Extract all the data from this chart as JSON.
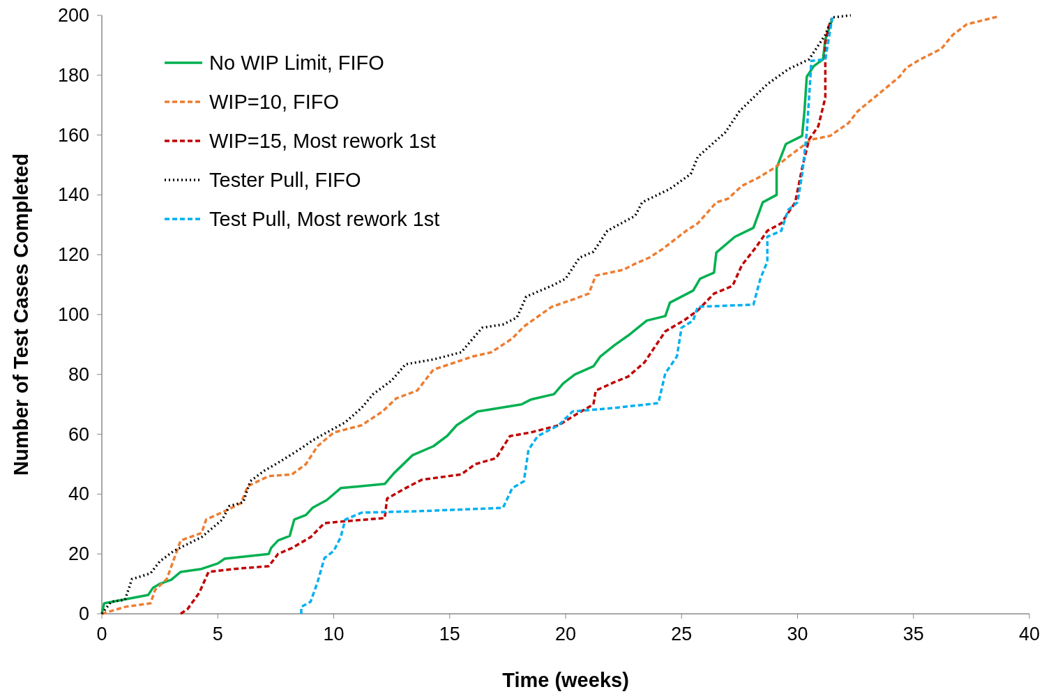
{
  "chart_data": {
    "type": "line",
    "xlabel": "Time (weeks)",
    "ylabel": "Number of Test Cases Completed",
    "xlim": [
      0,
      40
    ],
    "ylim": [
      0,
      200
    ],
    "xticks": [
      0,
      5,
      10,
      15,
      20,
      25,
      30,
      35,
      40
    ],
    "yticks": [
      0,
      20,
      40,
      60,
      80,
      100,
      120,
      140,
      160,
      180,
      200
    ],
    "grid": false,
    "legend": "top left",
    "series": [
      {
        "name": "No WIP Limit, FIFO",
        "color": "#00b050",
        "line_style": "solid",
        "x": [
          0,
          0.1,
          2,
          2.2,
          2.5,
          3,
          3.4,
          4.3,
          5,
          5.3,
          7.2,
          7.3,
          7.6,
          8.1,
          8.3,
          8.8,
          9.1,
          9.7,
          10.3,
          12.2,
          12.6,
          13.4,
          14.3,
          14.9,
          15.3,
          16.2,
          18.1,
          18.5,
          19.5,
          19.9,
          20.4,
          21.2,
          21.5,
          22.1,
          22.7,
          23.5,
          24.3,
          24.5,
          25.5,
          25.8,
          26.4,
          26.5,
          27.3,
          28.1,
          28.5,
          29.1,
          29.1,
          29.5,
          30.2,
          30.3,
          30.4,
          30.7,
          31.1,
          31.2,
          31.5
        ],
        "values": [
          0,
          3.5,
          6.3,
          8.6,
          10,
          11.4,
          14,
          15,
          16.8,
          18.4,
          20,
          22,
          24.5,
          26,
          31.5,
          33,
          35.5,
          38,
          42,
          43.4,
          47,
          53,
          56,
          59.5,
          63,
          67.6,
          70,
          71.6,
          73.4,
          77,
          80,
          82.7,
          86,
          89.7,
          93,
          98,
          99.5,
          104,
          108,
          112,
          114,
          120.7,
          126,
          129,
          137.5,
          140,
          149,
          157,
          159.7,
          168,
          179.5,
          183,
          185.3,
          192,
          198.6
        ]
      },
      {
        "name": "WIP=10,  FIFO",
        "color": "#ed7d31",
        "line_style": "dashed",
        "x": [
          0,
          1,
          2.1,
          2.3,
          2.8,
          3.4,
          4.3,
          4.5,
          5.5,
          6,
          6.3,
          7.2,
          8.2,
          8.8,
          9.3,
          10,
          11.2,
          12.1,
          12.7,
          13.6,
          14.3,
          16,
          16.8,
          17.7,
          18.2,
          19.4,
          20.3,
          21,
          21.3,
          22.5,
          23,
          23.6,
          24.2,
          25.2,
          25.7,
          26.5,
          27,
          27.6,
          28.3,
          29,
          29.6,
          30.6,
          31.4,
          32.2,
          32.6,
          33.7,
          34.4,
          34.7,
          35.3,
          36.2,
          36.7,
          37.3,
          38.6
        ],
        "values": [
          0,
          2.3,
          3.5,
          8,
          11.6,
          24.5,
          27,
          31.5,
          35,
          37,
          42.7,
          46,
          46.6,
          50,
          56,
          60.6,
          63,
          67.6,
          72,
          74.6,
          81.6,
          86,
          87.4,
          92,
          96,
          102.6,
          105,
          107,
          113,
          115,
          117,
          119,
          122,
          128,
          130.5,
          137.5,
          138.7,
          143,
          145.7,
          149,
          152.7,
          158.5,
          159.7,
          164,
          168,
          175,
          179.5,
          182.5,
          185.3,
          188.8,
          193.5,
          197,
          199.5
        ]
      },
      {
        "name": "WIP=15,  Most rework 1st",
        "color": "#c00000",
        "line_style": "dashed",
        "x": [
          3.4,
          3.7,
          4.2,
          4.6,
          5.7,
          7.2,
          7.6,
          8.2,
          9,
          9.6,
          10.3,
          12.2,
          12.3,
          13.1,
          13.8,
          15.5,
          16.1,
          17,
          17.6,
          18.5,
          19.7,
          20.4,
          21.2,
          21.3,
          22.1,
          22.7,
          23.4,
          24.3,
          25.1,
          25.7,
          26.4,
          27.2,
          27.6,
          28.2,
          28.7,
          29.3,
          29.9,
          30.2,
          30.5,
          30.9,
          31.2,
          31.2,
          31.4
        ],
        "values": [
          0,
          1.6,
          7,
          14,
          15,
          15.9,
          20,
          22,
          25.6,
          30.3,
          30.8,
          32,
          38.5,
          42,
          44.8,
          46.6,
          50,
          52,
          59.4,
          60.6,
          63,
          66.4,
          70,
          74.6,
          77.4,
          79.3,
          84,
          94.4,
          98,
          101.4,
          107,
          109.6,
          116.5,
          122.4,
          128,
          130.5,
          137.5,
          149,
          158.5,
          163,
          172.5,
          191,
          198
        ]
      },
      {
        "name": "Tester Pull, FIFO",
        "color": "#000000",
        "line_style": "dotted",
        "x": [
          0,
          0.4,
          1,
          1.3,
          2.1,
          2.5,
          3.1,
          4.3,
          5.2,
          5.5,
          6.1,
          6.4,
          7,
          7.5,
          8.5,
          9.1,
          9.7,
          10.5,
          11.2,
          11.7,
          12.5,
          13.1,
          14.3,
          15.5,
          16.4,
          17.3,
          17.9,
          18.3,
          19.4,
          20,
          20.6,
          21.2,
          21.8,
          23,
          23.3,
          24.5,
          25.4,
          25.7,
          26.9,
          27.5,
          28.1,
          28.7,
          29.6,
          30.5,
          30.8,
          31.2,
          31.5,
          32.3
        ],
        "values": [
          0,
          4,
          4.7,
          11.6,
          13.5,
          17.5,
          21,
          25.6,
          31.5,
          36,
          37.3,
          44.3,
          47.8,
          50,
          54.8,
          58,
          60.6,
          64,
          68.8,
          73.4,
          78,
          83.4,
          85,
          87.4,
          95.6,
          96.7,
          99,
          106,
          109.6,
          112,
          119,
          121,
          128,
          133,
          137.5,
          142,
          147,
          152.7,
          161,
          168,
          172.5,
          177,
          182,
          185.3,
          188.8,
          193.5,
          199.3,
          200
        ]
      },
      {
        "name": "Test Pull, Most rework 1st",
        "color": "#00b0f0",
        "line_style": "dashed",
        "x": [
          8.6,
          8.6,
          9,
          9.3,
          9.6,
          10,
          10.3,
          10.5,
          11.2,
          13.7,
          17.3,
          17.7,
          18.2,
          18.4,
          18.8,
          19.7,
          20.3,
          22.1,
          24,
          24.3,
          24.8,
          25,
          25.5,
          25.7,
          28.1,
          28.4,
          28.7,
          28.7,
          29.3,
          29.6,
          30,
          30.2,
          30.4,
          30.5,
          30.6,
          31.2,
          31.5
        ],
        "values": [
          0,
          2.3,
          4,
          10.5,
          18.6,
          21,
          25.6,
          31.5,
          33.8,
          34.3,
          35.4,
          42,
          44.3,
          54.8,
          59.4,
          63,
          67.6,
          68.8,
          70.4,
          80.4,
          86,
          95.6,
          98,
          102.6,
          103.3,
          112,
          117.7,
          126,
          128,
          135,
          137.5,
          146.8,
          160.8,
          172.5,
          184.8,
          185.3,
          199.3
        ]
      }
    ]
  }
}
